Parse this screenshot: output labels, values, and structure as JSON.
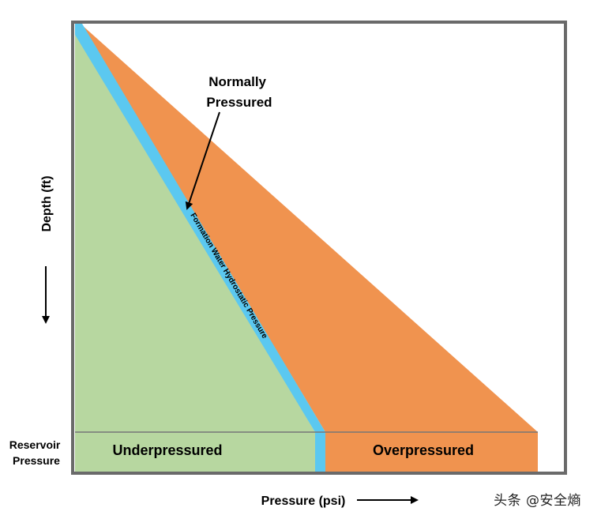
{
  "diagram": {
    "normally_pressured_label": [
      "Normally",
      "Pressured"
    ],
    "hydrostatic_line_label": "Formation Water Hydrostatic Pressure",
    "underpressured_label": "Underpressured",
    "overpressured_label": "Overpressured",
    "reservoir_label": [
      "Reservoir",
      "Pressure"
    ],
    "y_axis_label": "Depth (ft)",
    "x_axis_label": "Pressure (psi)",
    "watermark": "头条 @安全熵"
  },
  "colors": {
    "underpressured_fill": "#b7d7a0",
    "overpressured_fill": "#f0934f",
    "hydrostatic_band": "#5bc8f0",
    "frame": "#6a6a6a"
  }
}
